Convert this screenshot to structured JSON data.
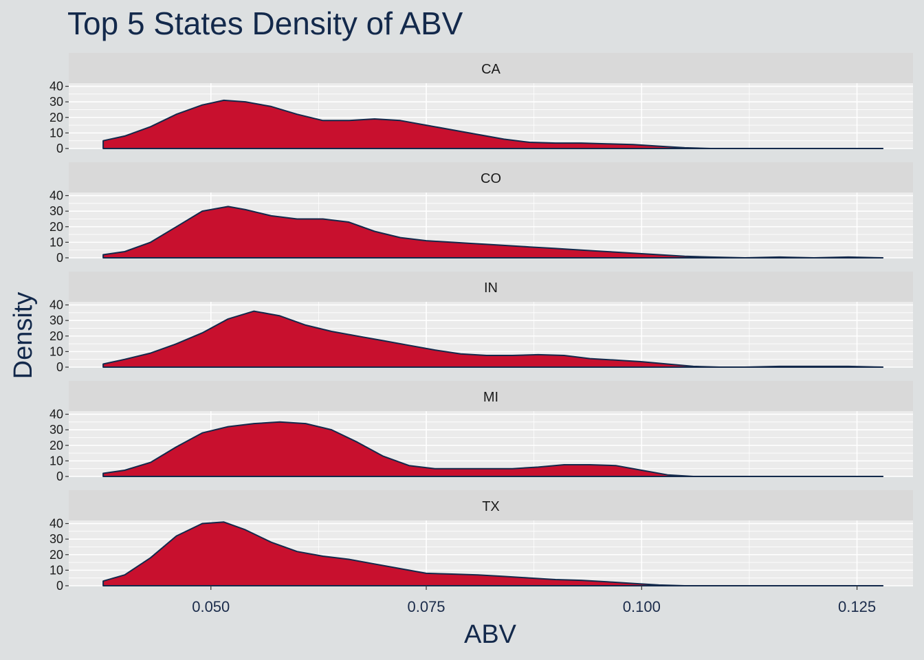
{
  "chart_data": {
    "type": "area",
    "title": "Top 5 States Density of ABV",
    "xlabel": "ABV",
    "ylabel": "Density",
    "xlim": [
      0.0335,
      0.1315
    ],
    "ylim": [
      0,
      42
    ],
    "x_ticks": [
      0.05,
      0.075,
      0.1,
      0.125
    ],
    "x_tick_labels": [
      "0.050",
      "0.075",
      "0.100",
      "0.125"
    ],
    "y_ticks": [
      0,
      10,
      20,
      30,
      40
    ],
    "y_tick_labels": [
      "0",
      "10",
      "20",
      "30",
      "40"
    ],
    "grid": true,
    "colors": {
      "fill": "#c8102e",
      "outline": "#13294b",
      "panel_bg": "#ebebeb",
      "strip_bg": "#d9d9d9",
      "page_bg": "#dde0e1"
    },
    "panels": [
      {
        "name": "CA",
        "x": [
          0.0375,
          0.04,
          0.043,
          0.046,
          0.049,
          0.0515,
          0.054,
          0.057,
          0.06,
          0.063,
          0.066,
          0.069,
          0.072,
          0.075,
          0.078,
          0.081,
          0.084,
          0.087,
          0.09,
          0.093,
          0.096,
          0.099,
          0.102,
          0.105,
          0.108,
          0.112,
          0.116,
          0.12,
          0.124,
          0.128
        ],
        "y": [
          5,
          8,
          14,
          22,
          28,
          31,
          30,
          27,
          22,
          18,
          18,
          19,
          18,
          15,
          12,
          9,
          6,
          4,
          3.5,
          3.5,
          3,
          2.5,
          1.5,
          0.5,
          0,
          0,
          0,
          0,
          0,
          0
        ]
      },
      {
        "name": "CO",
        "x": [
          0.0375,
          0.04,
          0.043,
          0.046,
          0.049,
          0.052,
          0.054,
          0.057,
          0.06,
          0.063,
          0.066,
          0.069,
          0.072,
          0.075,
          0.078,
          0.081,
          0.084,
          0.087,
          0.09,
          0.093,
          0.096,
          0.099,
          0.102,
          0.105,
          0.108,
          0.112,
          0.116,
          0.12,
          0.124,
          0.128
        ],
        "y": [
          2,
          4,
          10,
          20,
          30,
          33,
          31,
          27,
          25,
          25,
          23,
          17,
          13,
          11,
          10,
          9,
          8,
          7,
          6,
          5,
          4,
          3,
          2,
          1,
          0.5,
          0,
          0.5,
          0,
          0.5,
          0
        ]
      },
      {
        "name": "IN",
        "x": [
          0.0375,
          0.04,
          0.043,
          0.046,
          0.049,
          0.052,
          0.055,
          0.058,
          0.061,
          0.064,
          0.067,
          0.07,
          0.073,
          0.076,
          0.079,
          0.082,
          0.085,
          0.088,
          0.091,
          0.094,
          0.097,
          0.1,
          0.103,
          0.106,
          0.109,
          0.112,
          0.116,
          0.12,
          0.124,
          0.128
        ],
        "y": [
          2,
          5,
          9,
          15,
          22,
          31,
          36,
          33,
          27,
          23,
          20,
          17,
          14,
          11,
          8.5,
          7.5,
          7.5,
          8,
          7.5,
          5.5,
          4.5,
          3.5,
          2,
          0.5,
          0,
          0,
          0.5,
          0.5,
          0.5,
          0
        ]
      },
      {
        "name": "MI",
        "x": [
          0.0375,
          0.04,
          0.043,
          0.046,
          0.049,
          0.052,
          0.055,
          0.058,
          0.061,
          0.064,
          0.067,
          0.07,
          0.073,
          0.076,
          0.079,
          0.082,
          0.085,
          0.088,
          0.091,
          0.094,
          0.097,
          0.1,
          0.103,
          0.106,
          0.11,
          0.114,
          0.118,
          0.122,
          0.128
        ],
        "y": [
          2,
          4,
          9,
          19,
          28,
          32,
          34,
          35,
          34,
          30,
          22,
          13,
          7,
          5,
          5,
          5,
          5,
          6,
          7.5,
          7.5,
          7,
          4,
          1,
          0,
          0,
          0,
          0,
          0,
          0
        ]
      },
      {
        "name": "TX",
        "x": [
          0.0375,
          0.04,
          0.043,
          0.046,
          0.049,
          0.0515,
          0.054,
          0.057,
          0.06,
          0.063,
          0.066,
          0.069,
          0.072,
          0.075,
          0.078,
          0.081,
          0.084,
          0.087,
          0.09,
          0.093,
          0.096,
          0.099,
          0.102,
          0.105,
          0.108,
          0.112,
          0.116,
          0.12,
          0.124,
          0.128
        ],
        "y": [
          3,
          7,
          18,
          32,
          40,
          41,
          36,
          28,
          22,
          19,
          17,
          14,
          11,
          8,
          7.5,
          7,
          6,
          5,
          4,
          3.5,
          2.5,
          1.5,
          0.5,
          0,
          0,
          0,
          0,
          0,
          0,
          0
        ]
      }
    ]
  }
}
